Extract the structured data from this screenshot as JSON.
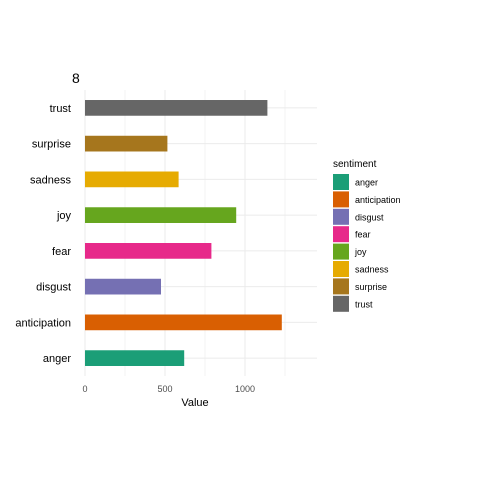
{
  "chart_data": {
    "type": "bar",
    "orientation": "horizontal",
    "title": "8",
    "xlabel": "Value",
    "ylabel": "",
    "xlim": [
      0,
      1450
    ],
    "x_ticks": [
      0,
      500,
      1000
    ],
    "grid": true,
    "legend": {
      "title": "sentiment",
      "position": "right",
      "entries": [
        "anger",
        "anticipation",
        "disgust",
        "fear",
        "joy",
        "sadness",
        "surprise",
        "trust"
      ]
    },
    "categories": [
      "anger",
      "anticipation",
      "disgust",
      "fear",
      "joy",
      "sadness",
      "surprise",
      "trust"
    ],
    "values": [
      620,
      1230,
      475,
      790,
      945,
      585,
      515,
      1140
    ],
    "colors": {
      "anger": "#1B9E77",
      "anticipation": "#D95F02",
      "disgust": "#7570B3",
      "fear": "#E7298A",
      "joy": "#66A61E",
      "sadness": "#E6AB02",
      "surprise": "#A6761D",
      "trust": "#666666"
    }
  }
}
